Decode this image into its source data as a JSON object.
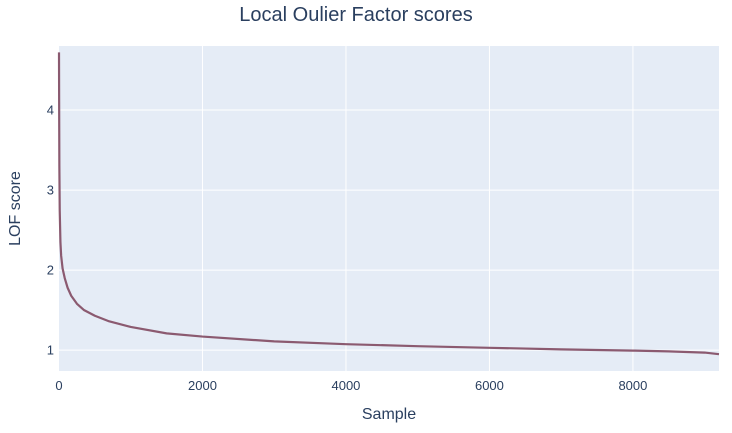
{
  "chart_data": {
    "type": "line",
    "title": "Local Oulier Factor scores",
    "xlabel": "Sample",
    "ylabel": "LOF score",
    "xlim": [
      0,
      9200
    ],
    "ylim": [
      0.74,
      4.8
    ],
    "x_ticks": [
      0,
      2000,
      4000,
      6000,
      8000
    ],
    "y_ticks": [
      1,
      2,
      3,
      4
    ],
    "grid": true,
    "legend": "none",
    "series": [
      {
        "color": "#8b5a70",
        "x": [
          0,
          2,
          5,
          10,
          20,
          30,
          50,
          80,
          120,
          170,
          250,
          350,
          500,
          700,
          1000,
          1500,
          2000,
          3000,
          4000,
          5000,
          6000,
          7000,
          8000,
          8500,
          9000,
          9200
        ],
        "y": [
          4.72,
          4.1,
          3.3,
          2.75,
          2.35,
          2.18,
          2.02,
          1.9,
          1.78,
          1.68,
          1.58,
          1.5,
          1.43,
          1.36,
          1.29,
          1.21,
          1.17,
          1.11,
          1.075,
          1.05,
          1.03,
          1.01,
          0.995,
          0.985,
          0.97,
          0.95
        ]
      }
    ]
  }
}
